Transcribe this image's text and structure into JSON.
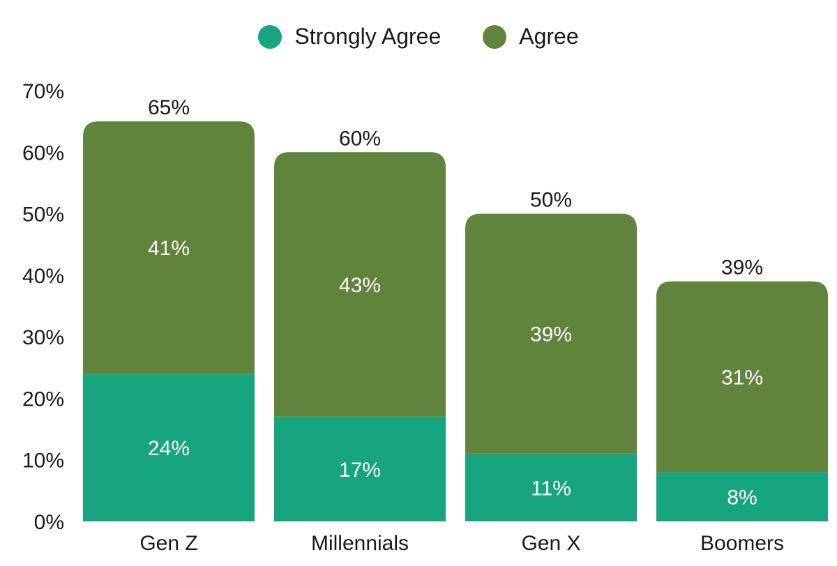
{
  "chart_data": {
    "type": "bar",
    "stacked": true,
    "categories": [
      "Gen Z",
      "Millennials",
      "Gen X",
      "Boomers"
    ],
    "series": [
      {
        "name": "Strongly Agree",
        "color": "#17a57f",
        "values": [
          24,
          17,
          11,
          8
        ],
        "labels": [
          "24%",
          "17%",
          "11%",
          "8%"
        ]
      },
      {
        "name": "Agree",
        "color": "#61843c",
        "values": [
          41,
          43,
          39,
          31
        ],
        "labels": [
          "41%",
          "43%",
          "39%",
          "31%"
        ]
      }
    ],
    "totals": [
      65,
      60,
      50,
      39
    ],
    "total_labels": [
      "65%",
      "60%",
      "50%",
      "39%"
    ],
    "ylim": [
      0,
      70
    ],
    "yticks": [
      "0%",
      "10%",
      "20%",
      "30%",
      "40%",
      "50%",
      "60%",
      "70%"
    ],
    "legend_position": "top-center",
    "grid": false
  }
}
